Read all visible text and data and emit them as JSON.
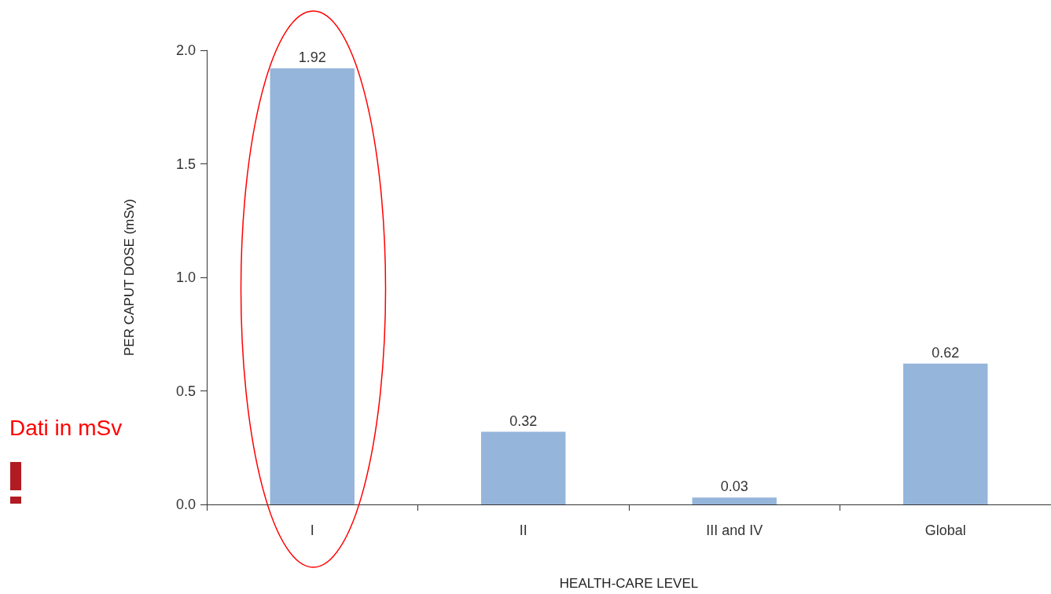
{
  "chart_data": {
    "type": "bar",
    "xlabel": "HEALTH-CARE LEVEL",
    "ylabel": "PER CAPUT DOSE (mSv)",
    "categories": [
      "I",
      "II",
      "III and IV",
      "Global"
    ],
    "values": [
      1.92,
      0.32,
      0.03,
      0.62
    ],
    "color": "#95b5da",
    "data_labels": true,
    "ylim": [
      0,
      2
    ],
    "yticks": [
      {
        "value": 0,
        "label": "0.0"
      },
      {
        "value": 0.5,
        "label": "0.5"
      },
      {
        "value": 1,
        "label": "1.0"
      },
      {
        "value": 1.5,
        "label": "1.5"
      },
      {
        "value": 2,
        "label": "2.0"
      }
    ],
    "grid": false,
    "annotations": [
      "Dati in mSv"
    ]
  }
}
